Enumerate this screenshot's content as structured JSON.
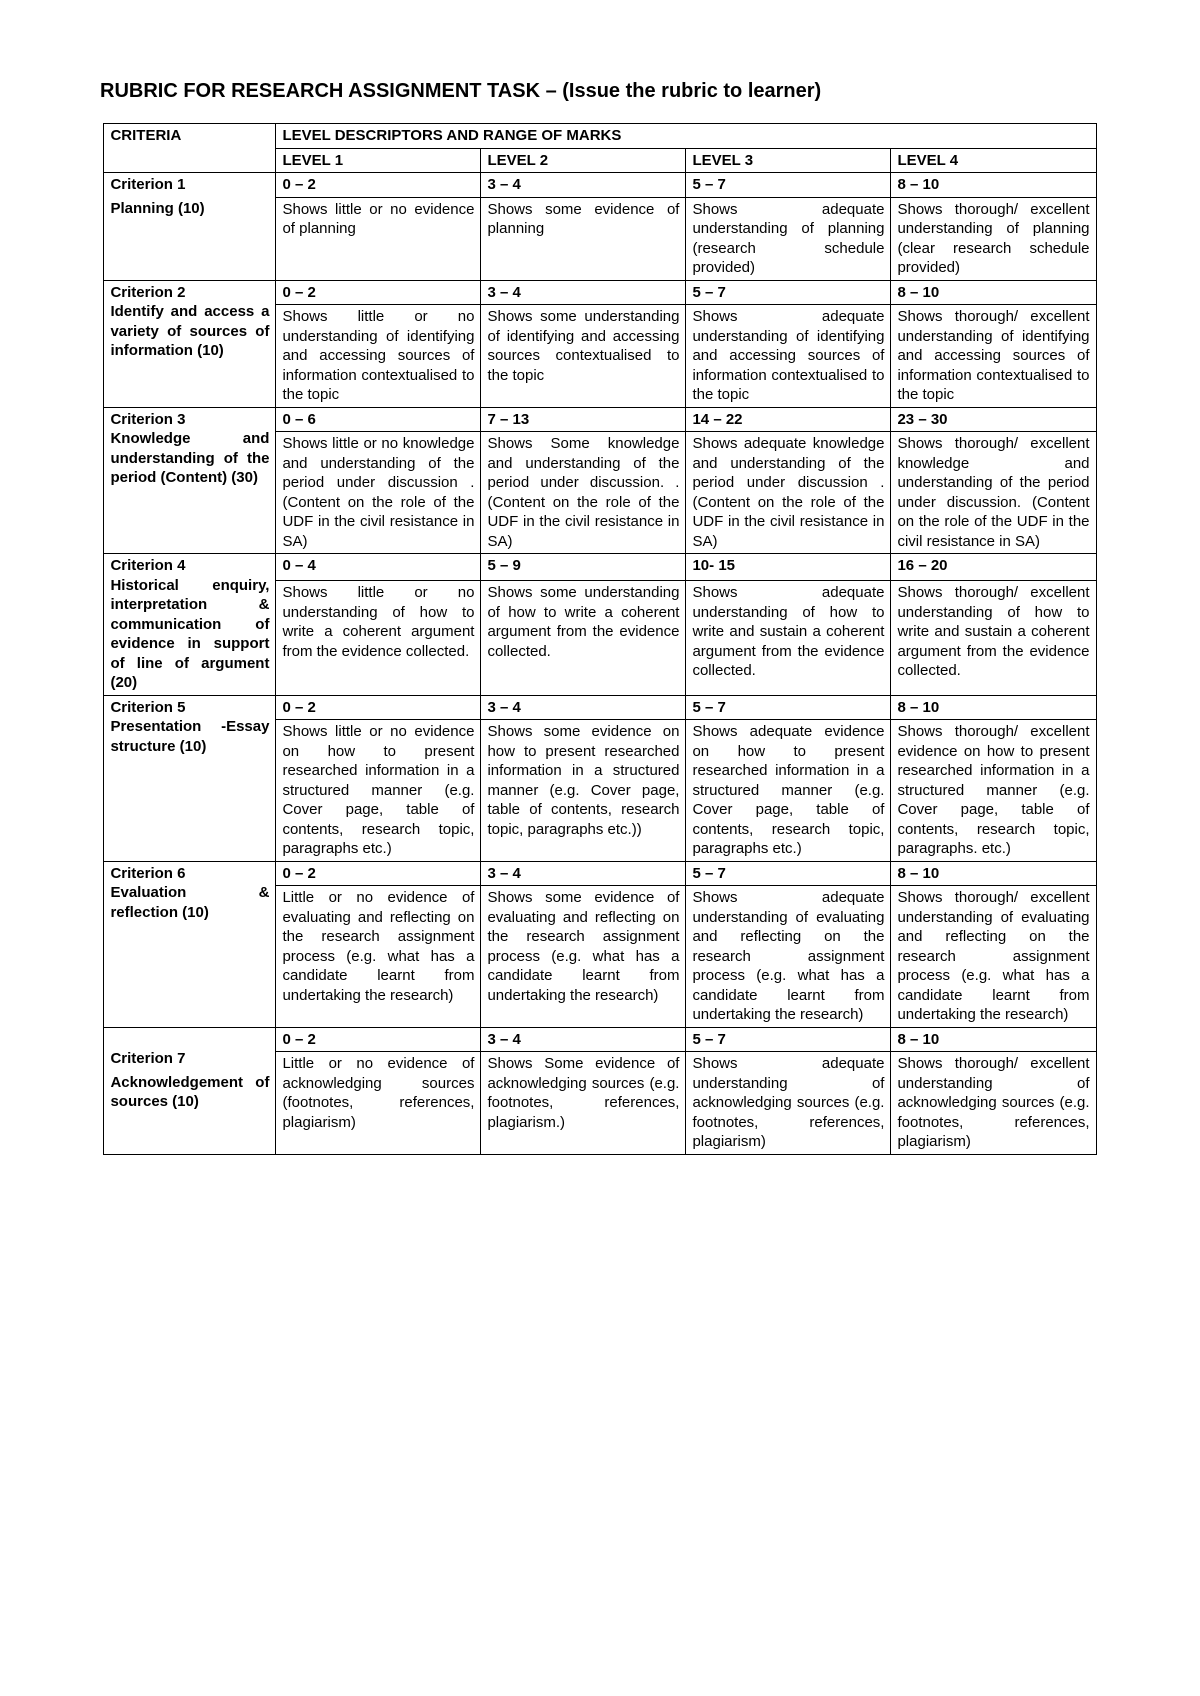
{
  "title": "RUBRIC FOR RESEARCH ASSIGNMENT TASK – (Issue the rubric to learner)",
  "headers": {
    "criteria": "CRITERIA",
    "level_desc": "LEVEL DESCRIPTORS AND RANGE OF MARKS",
    "level1": "LEVEL 1",
    "level2": "LEVEL 2",
    "level3": "LEVEL 3",
    "level4": "LEVEL 4"
  },
  "rows": [
    {
      "label": "Criterion 1",
      "title": "Planning (10)",
      "ranges": [
        "0 – 2",
        "3 – 4",
        "5 – 7",
        "8 – 10"
      ],
      "cells": [
        "Shows little or no evidence of planning",
        "Shows some evidence of planning",
        "Shows adequate understanding of planning (research schedule provided)",
        "Shows thorough/ excellent understanding of planning (clear research schedule provided)"
      ]
    },
    {
      "label": "Criterion 2",
      "title": "Identify and access a variety of sources of information (10)",
      "ranges": [
        "0 – 2",
        "3 – 4",
        "5 – 7",
        "8 – 10"
      ],
      "cells": [
        "Shows little or no understanding of identifying and accessing sources of information contextualised to the topic",
        "Shows some understanding of identifying and accessing sources contextualised to the topic",
        "Shows adequate understanding of identifying and accessing sources of information contextualised to the topic",
        "Shows thorough/ excellent understanding of identifying and accessing sources of information contextualised to the topic"
      ]
    },
    {
      "label": "Criterion 3",
      "title": "Knowledge and understanding of the period (Content) (30)",
      "ranges": [
        "0 – 6",
        "7 – 13",
        "14 – 22",
        "23 – 30"
      ],
      "cells": [
        "Shows little or no knowledge and understanding of the period under discussion .(Content on the role of the UDF in the civil resistance in SA)",
        "Shows Some knowledge and understanding of the period under discussion. .(Content on the role of the UDF in the civil resistance in SA)",
        "Shows adequate knowledge and understanding of the period under discussion . (Content on the role of the UDF in the civil resistance in SA)",
        "Shows thorough/ excellent knowledge and understanding of the period under discussion. (Content on the role of the UDF in the civil resistance in SA)"
      ]
    },
    {
      "label": "Criterion 4",
      "title": "Historical enquiry, interpretation & communication of evidence in support of line of argument (20)",
      "ranges": [
        "0 – 4",
        "5 – 9",
        "10- 15",
        "16 – 20"
      ],
      "cells": [
        "Shows little or no understanding of how to write a coherent argument from the evidence collected.",
        "Shows some understanding of how to write a coherent argument from the evidence collected.",
        "Shows adequate understanding of how to write and sustain a coherent argument from the evidence collected.",
        "Shows thorough/ excellent understanding of how to write and sustain a coherent argument from the evidence collected."
      ]
    },
    {
      "label": "Criterion 5",
      "title": "Presentation -Essay structure (10)",
      "ranges": [
        "0 – 2",
        "3 – 4",
        "5 – 7",
        "8 – 10"
      ],
      "cells": [
        "Shows little or no evidence on how to present researched information in a structured manner (e.g. Cover page, table of contents, research topic, paragraphs etc.)",
        "Shows some evidence on how to present researched information in a structured manner (e.g. Cover page, table of contents, research topic, paragraphs etc.))",
        "Shows adequate evidence on how to present researched information in a structured manner (e.g. Cover page, table of contents, research topic, paragraphs etc.)",
        "Shows thorough/ excellent evidence on how to present researched information in a structured manner (e.g. Cover page, table of contents, research topic, paragraphs. etc.)"
      ]
    },
    {
      "label": "Criterion 6",
      "title": "Evaluation & reflection (10)",
      "ranges": [
        "0 – 2",
        "3 – 4",
        "5 – 7",
        "8 – 10"
      ],
      "cells": [
        "Little or no evidence of evaluating and reflecting on the research assignment process (e.g. what has a candidate learnt from undertaking the research)",
        "Shows some evidence of evaluating and reflecting on the research assignment process (e.g. what has a candidate learnt from undertaking the research)",
        "Shows adequate understanding of evaluating and reflecting on the research assignment process (e.g. what has a candidate learnt from undertaking the research)",
        "Shows thorough/ excellent understanding of evaluating and reflecting on the research assignment process (e.g. what has a candidate learnt from undertaking the research)"
      ]
    },
    {
      "label": "Criterion 7",
      "title": "Acknowledgement of sources (10)",
      "ranges": [
        "0 – 2",
        "3 – 4",
        "5 – 7",
        "8 – 10"
      ],
      "cells": [
        "Little or no evidence of acknowledging sources (footnotes, references, plagiarism)",
        "Shows Some evidence of acknowledging sources (e.g. footnotes, references, plagiarism.)",
        "Shows adequate understanding of acknowledging sources (e.g. footnotes, references, plagiarism)",
        "Shows thorough/ excellent understanding of acknowledging sources (e.g. footnotes, references, plagiarism)"
      ]
    }
  ]
}
